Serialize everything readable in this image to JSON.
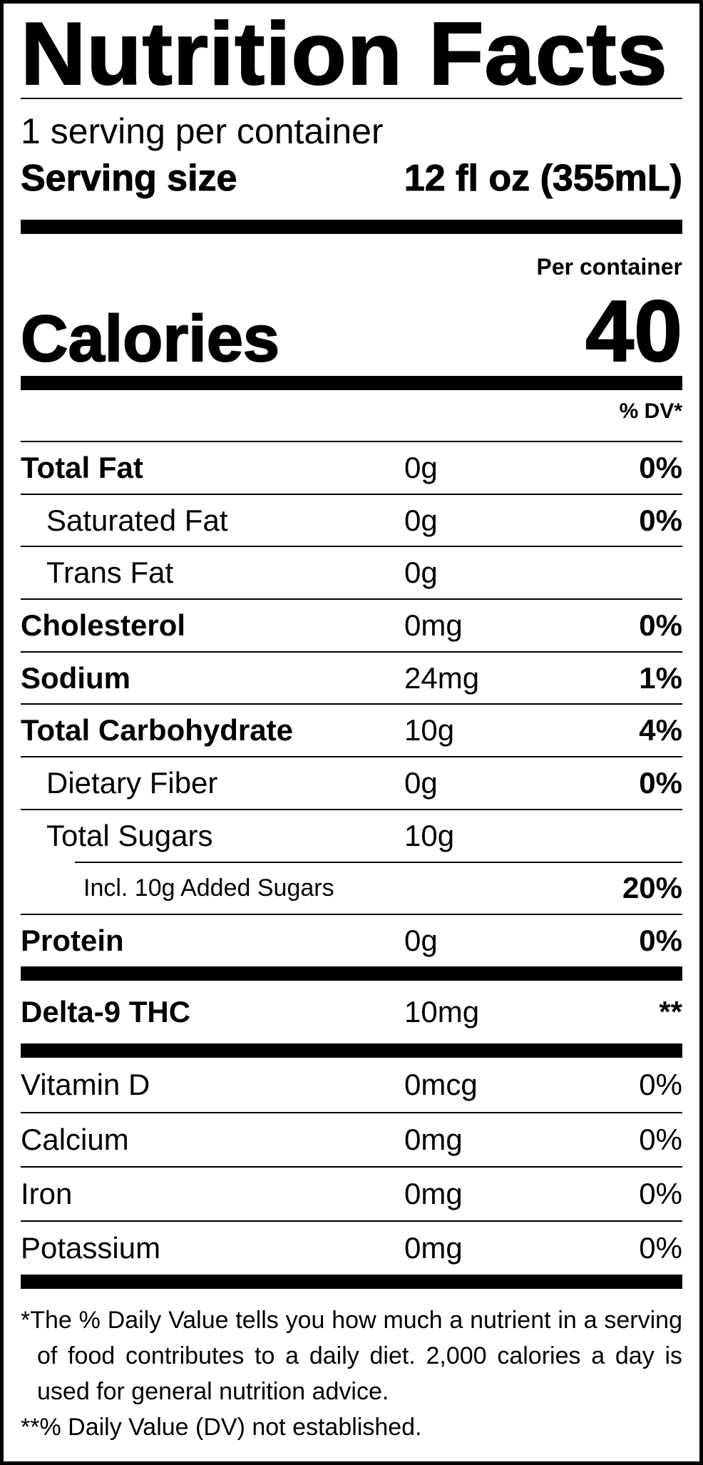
{
  "title": "Nutrition Facts",
  "servings": "1 serving per container",
  "serving_size_label": "Serving size",
  "serving_size_value": "12 fl oz (355mL)",
  "per_container": "Per container",
  "calories_label": "Calories",
  "calories_value": "40",
  "dv_header": "% DV*",
  "nutrients": [
    {
      "name": "Total Fat",
      "amount": "0g",
      "dv": "0%",
      "style": "bold"
    },
    {
      "name": "Saturated Fat",
      "amount": "0g",
      "dv": "0%",
      "style": "sub"
    },
    {
      "name": "Trans Fat",
      "amount": "0g",
      "dv": "",
      "style": "sub"
    },
    {
      "name": "Cholesterol",
      "amount": "0mg",
      "dv": "0%",
      "style": "bold"
    },
    {
      "name": "Sodium",
      "amount": "24mg",
      "dv": "1%",
      "style": "bold"
    },
    {
      "name": "Total Carbohydrate",
      "amount": "10g",
      "dv": "4%",
      "style": "bold"
    },
    {
      "name": "Dietary Fiber",
      "amount": "0g",
      "dv": "0%",
      "style": "sub"
    },
    {
      "name": "Total Sugars",
      "amount": "10g",
      "dv": "",
      "style": "sub"
    },
    {
      "name": "Incl. 10g Added Sugars",
      "amount": "",
      "dv": "20%",
      "style": "sub2"
    },
    {
      "name": "Protein",
      "amount": "0g",
      "dv": "0%",
      "style": "bold"
    }
  ],
  "thc": {
    "name": "Delta-9 THC",
    "amount": "10mg",
    "dv": "**"
  },
  "vitamins": [
    {
      "name": "Vitamin D",
      "amount": "0mcg",
      "dv": "0%"
    },
    {
      "name": "Calcium",
      "amount": "0mg",
      "dv": "0%"
    },
    {
      "name": "Iron",
      "amount": "0mg",
      "dv": "0%"
    },
    {
      "name": "Potassium",
      "amount": "0mg",
      "dv": "0%"
    }
  ],
  "footnote_1": "*The % Daily Value tells you how much a nutrient in a serving of food contributes to a daily diet. 2,000 calories a day is used for general nutrition advice.",
  "footnote_2": "**% Daily Value (DV) not established."
}
